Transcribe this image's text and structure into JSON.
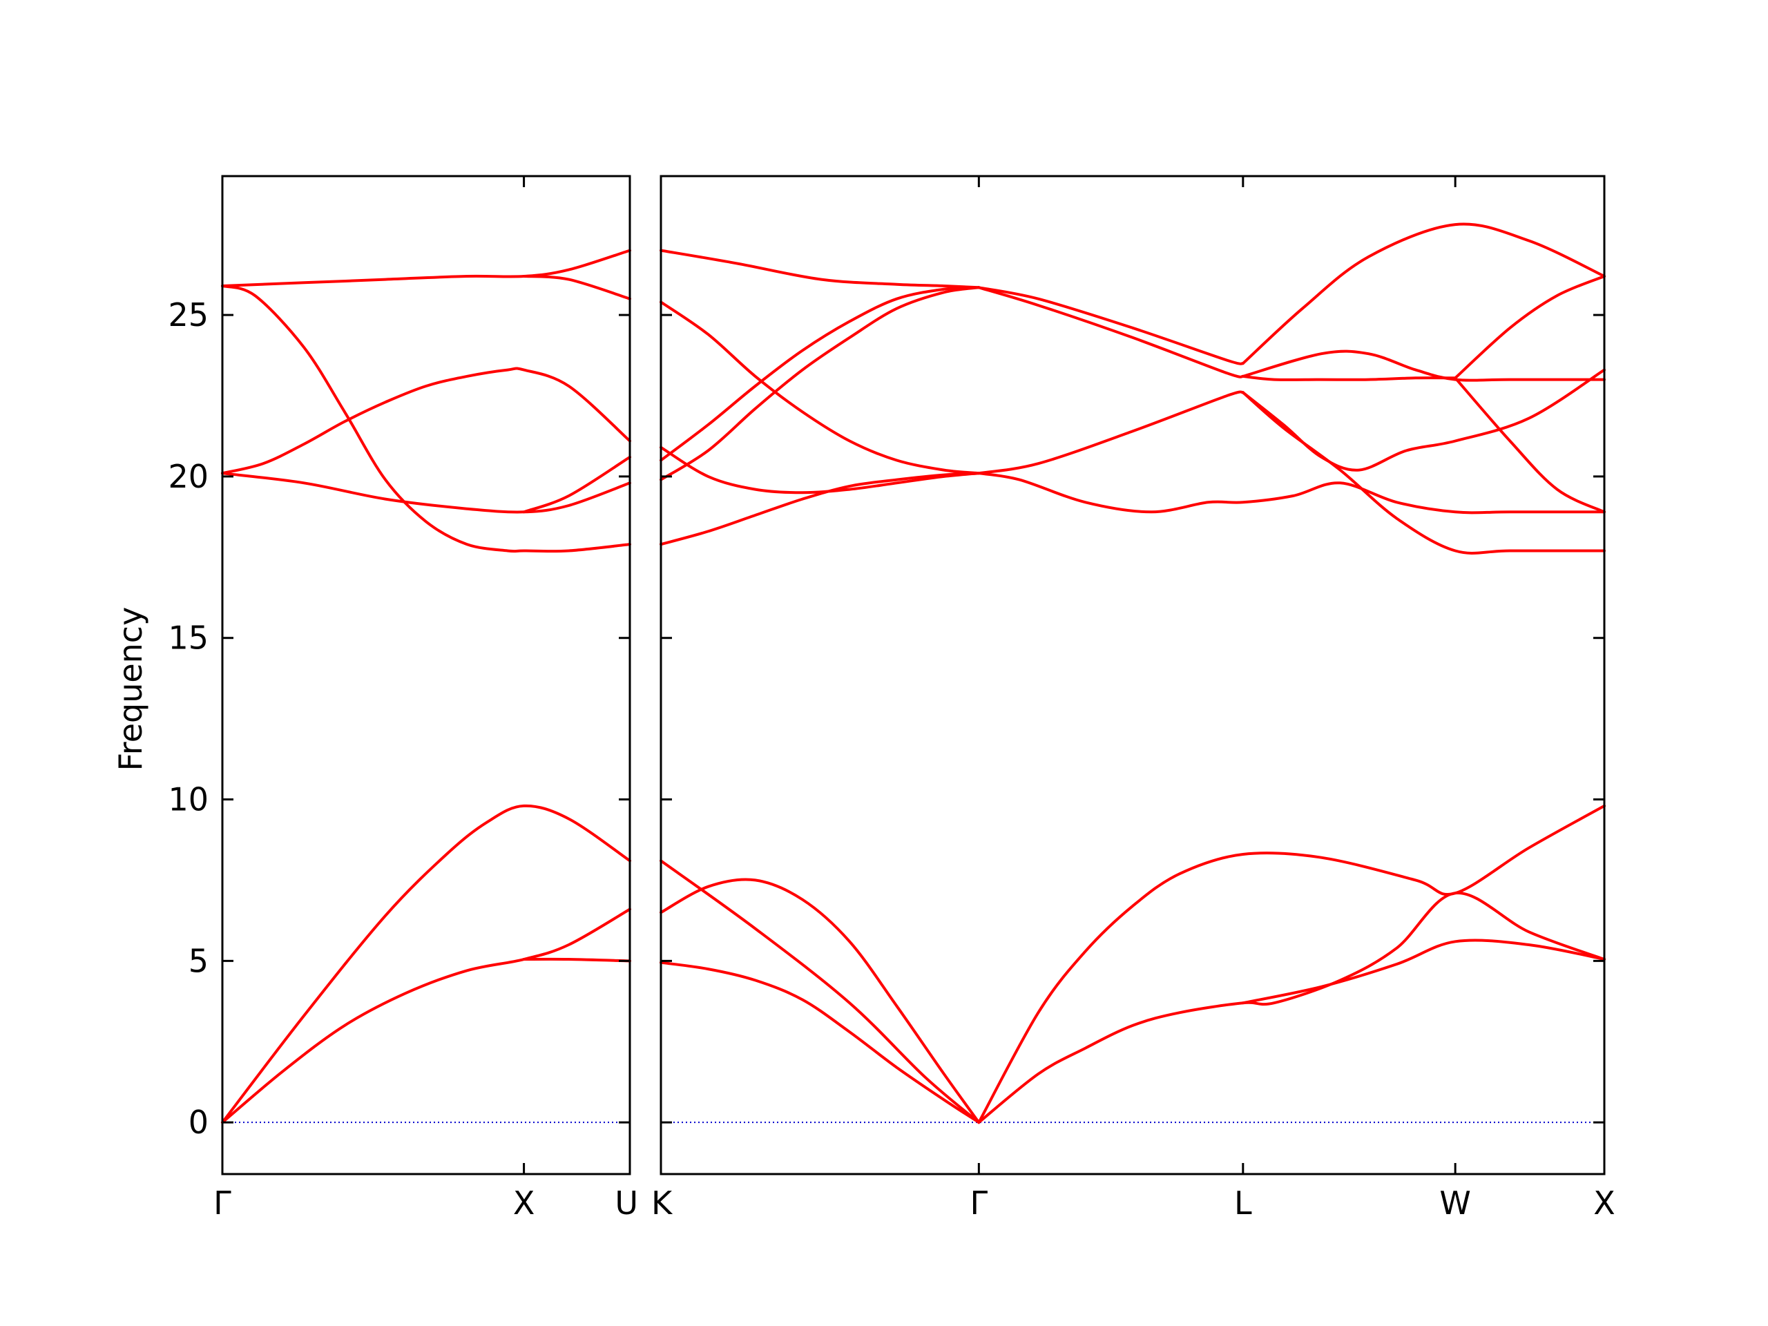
{
  "colors": {
    "band": "#ff0000",
    "zero_line": "#0000cc",
    "axes": "#000000",
    "background": "#ffffff"
  },
  "chart_data": {
    "type": "line",
    "title": "",
    "ylabel": "Frequency",
    "ylim": [
      -1.6,
      29.3
    ],
    "yticks": [
      0,
      5,
      10,
      15,
      20,
      25
    ],
    "ytick_labels": [
      "0",
      "5",
      "10",
      "15",
      "20",
      "25"
    ],
    "grid": false,
    "legend": false,
    "zero_line": {
      "y": 0,
      "style": "dotted"
    },
    "panels": [
      {
        "xlim": [
          0,
          1
        ],
        "ticks": [
          {
            "x": 0,
            "label": "Γ"
          },
          {
            "x": 0.74,
            "label": "X"
          },
          {
            "x": 1,
            "label": "U"
          }
        ],
        "series": [
          {
            "x": [
              0,
              0.2,
              0.4,
              0.55,
              0.65,
              0.74,
              0.85,
              1.0
            ],
            "values": [
              0.0,
              3.3,
              6.4,
              8.3,
              9.3,
              9.8,
              9.4,
              8.1
            ]
          },
          {
            "x": [
              0,
              0.15,
              0.3,
              0.45,
              0.6,
              0.74,
              0.85,
              1.0
            ],
            "values": [
              0.0,
              1.6,
              3.0,
              4.0,
              4.7,
              5.05,
              5.5,
              6.6
            ]
          },
          {
            "x": [
              0.74,
              0.85,
              1.0
            ],
            "values": [
              5.05,
              5.05,
              5.0
            ]
          },
          {
            "x": [
              0,
              0.2,
              0.4,
              0.6,
              0.74,
              0.85,
              1.0
            ],
            "values": [
              25.9,
              26.0,
              26.1,
              26.2,
              26.2,
              26.4,
              27.0
            ]
          },
          {
            "x": [
              0,
              0.08,
              0.2,
              0.3,
              0.4,
              0.5,
              0.6,
              0.7,
              0.74,
              0.85,
              1.0
            ],
            "values": [
              25.9,
              25.6,
              24.0,
              22.0,
              19.9,
              18.6,
              17.9,
              17.7,
              17.7,
              17.7,
              17.9
            ]
          },
          {
            "x": [
              0,
              0.1,
              0.2,
              0.3,
              0.4,
              0.5,
              0.6,
              0.7,
              0.74,
              0.85,
              1.0
            ],
            "values": [
              20.1,
              20.4,
              21.0,
              21.7,
              22.3,
              22.8,
              23.1,
              23.3,
              23.3,
              22.8,
              21.1
            ]
          },
          {
            "x": [
              0,
              0.2,
              0.4,
              0.6,
              0.74,
              0.85,
              1.0
            ],
            "values": [
              20.1,
              19.8,
              19.3,
              19.0,
              18.9,
              19.1,
              19.8
            ]
          },
          {
            "x": [
              0.74,
              0.85,
              1.0
            ],
            "values": [
              26.2,
              26.1,
              25.5
            ]
          },
          {
            "x": [
              0.74,
              0.85,
              1.0
            ],
            "values": [
              18.9,
              19.4,
              20.6
            ]
          }
        ]
      },
      {
        "xlim": [
          0,
          1
        ],
        "ticks": [
          {
            "x": 0,
            "label": "K"
          },
          {
            "x": 0.337,
            "label": "Γ"
          },
          {
            "x": 0.617,
            "label": "L"
          },
          {
            "x": 0.842,
            "label": "W"
          },
          {
            "x": 1,
            "label": "X"
          }
        ],
        "series": [
          {
            "x": [
              0,
              0.1,
              0.2,
              0.28,
              0.337
            ],
            "values": [
              8.1,
              6.0,
              3.7,
              1.4,
              0.0
            ]
          },
          {
            "x": [
              0,
              0.05,
              0.1,
              0.15,
              0.2,
              0.25,
              0.3,
              0.337
            ],
            "values": [
              4.95,
              4.75,
              4.4,
              3.8,
              2.8,
              1.7,
              0.7,
              0.0
            ]
          },
          {
            "x": [
              0,
              0.05,
              0.1,
              0.15,
              0.2,
              0.25,
              0.3,
              0.337
            ],
            "values": [
              6.5,
              7.3,
              7.5,
              6.9,
              5.6,
              3.6,
              1.5,
              0.0
            ]
          },
          {
            "x": [
              0.337,
              0.4,
              0.45,
              0.5,
              0.55,
              0.617,
              0.7,
              0.8,
              0.842,
              0.92,
              1.0
            ],
            "values": [
              0.0,
              3.4,
              5.3,
              6.7,
              7.7,
              8.3,
              8.2,
              7.5,
              7.1,
              8.5,
              9.8
            ]
          },
          {
            "x": [
              0.337,
              0.4,
              0.45,
              0.5,
              0.55,
              0.617,
              0.65,
              0.72,
              0.78,
              0.842,
              0.92,
              1.0
            ],
            "values": [
              0.0,
              1.5,
              2.3,
              3.0,
              3.4,
              3.7,
              3.7,
              4.4,
              5.4,
              7.1,
              5.9,
              5.05
            ]
          },
          {
            "x": [
              0.617,
              0.7,
              0.78,
              0.842,
              0.92,
              1.0
            ],
            "values": [
              3.7,
              4.2,
              4.9,
              5.6,
              5.5,
              5.05
            ]
          },
          {
            "x": [
              0,
              0.08,
              0.17,
              0.25,
              0.3,
              0.337
            ],
            "values": [
              27.0,
              26.6,
              26.1,
              25.95,
              25.9,
              25.85
            ]
          },
          {
            "x": [
              0.337,
              0.4,
              0.5,
              0.6,
              0.617
            ],
            "values": [
              25.85,
              25.5,
              24.6,
              23.6,
              23.5
            ]
          },
          {
            "x": [
              0.617,
              0.68,
              0.75,
              0.842,
              0.92,
              1.0
            ],
            "values": [
              23.5,
              25.2,
              26.8,
              27.8,
              27.3,
              26.2
            ]
          },
          {
            "x": [
              0,
              0.05,
              0.1,
              0.15,
              0.2,
              0.25,
              0.3,
              0.337
            ],
            "values": [
              20.5,
              21.6,
              22.8,
              23.9,
              24.8,
              25.5,
              25.8,
              25.85
            ]
          },
          {
            "x": [
              0,
              0.05,
              0.1,
              0.15,
              0.2,
              0.25,
              0.3,
              0.337
            ],
            "values": [
              19.9,
              20.8,
              22.1,
              23.3,
              24.3,
              25.2,
              25.7,
              25.85
            ]
          },
          {
            "x": [
              0.337,
              0.4,
              0.5,
              0.6,
              0.617
            ],
            "values": [
              25.85,
              25.3,
              24.3,
              23.2,
              23.1
            ]
          },
          {
            "x": [
              0,
              0.05,
              0.1,
              0.15,
              0.2,
              0.25,
              0.3,
              0.337
            ],
            "values": [
              25.4,
              24.4,
              23.1,
              22.0,
              21.1,
              20.5,
              20.2,
              20.1
            ]
          },
          {
            "x": [
              0,
              0.05,
              0.1,
              0.15,
              0.2,
              0.25,
              0.3,
              0.337
            ],
            "values": [
              20.9,
              20.0,
              19.6,
              19.5,
              19.6,
              19.8,
              20.0,
              20.1
            ]
          },
          {
            "x": [
              0,
              0.05,
              0.1,
              0.15,
              0.2,
              0.25,
              0.3,
              0.337
            ],
            "values": [
              17.9,
              18.3,
              18.8,
              19.3,
              19.7,
              19.9,
              20.05,
              20.1
            ]
          },
          {
            "x": [
              0.337,
              0.4,
              0.5,
              0.6,
              0.617
            ],
            "values": [
              20.1,
              20.4,
              21.4,
              22.5,
              22.6
            ]
          },
          {
            "x": [
              0.337,
              0.38,
              0.45,
              0.52,
              0.58,
              0.617,
              0.67,
              0.72,
              0.78,
              0.842,
              0.9,
              1.0
            ],
            "values": [
              20.1,
              19.9,
              19.2,
              18.9,
              19.2,
              19.2,
              19.4,
              19.8,
              19.2,
              18.9,
              18.9,
              18.9
            ]
          },
          {
            "x": [
              0.617,
              0.7,
              0.75,
              0.8,
              0.842,
              0.9,
              1.0
            ],
            "values": [
              23.1,
              23.8,
              23.8,
              23.3,
              23.0,
              23.0,
              23.0
            ]
          },
          {
            "x": [
              0.617,
              0.65,
              0.7,
              0.75,
              0.8,
              0.842
            ],
            "values": [
              23.1,
              23.0,
              23.0,
              23.0,
              23.05,
              23.05
            ]
          },
          {
            "x": [
              0.617,
              0.66,
              0.72,
              0.78,
              0.842,
              0.9,
              1.0
            ],
            "values": [
              22.6,
              21.5,
              20.2,
              18.7,
              17.7,
              17.7,
              17.7
            ]
          },
          {
            "x": [
              0.617,
              0.66,
              0.7,
              0.74,
              0.79,
              0.842,
              0.92,
              1.0
            ],
            "values": [
              22.6,
              21.6,
              20.6,
              20.2,
              20.8,
              21.1,
              21.8,
              23.3
            ]
          },
          {
            "x": [
              0.842,
              0.9,
              0.95,
              1.0
            ],
            "values": [
              23.05,
              24.6,
              25.6,
              26.2
            ]
          },
          {
            "x": [
              0.842,
              0.9,
              0.95,
              1.0
            ],
            "values": [
              23.05,
              21.1,
              19.6,
              18.9
            ]
          }
        ]
      }
    ]
  }
}
